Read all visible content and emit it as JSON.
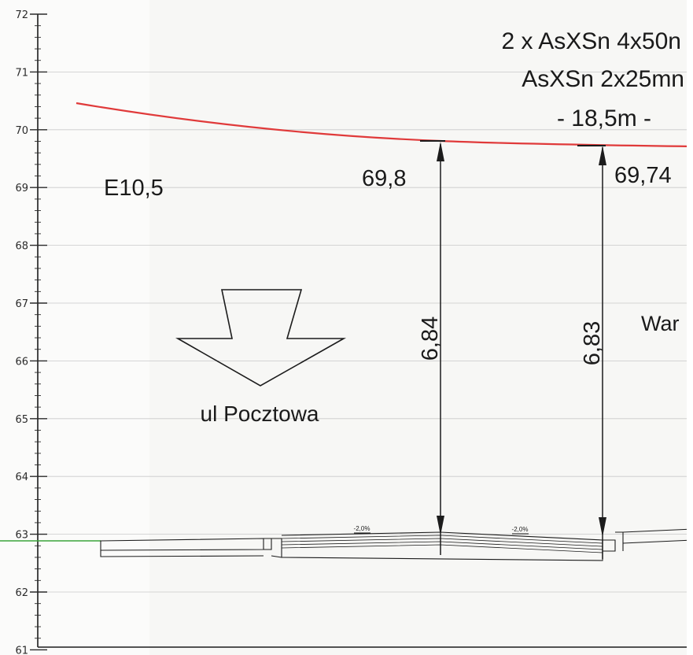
{
  "axis": {
    "ticks": [
      "72",
      "71",
      "70",
      "69",
      "68",
      "67",
      "66",
      "65",
      "64",
      "63",
      "62",
      "61"
    ],
    "range": [
      61,
      72
    ]
  },
  "labels": {
    "cable_line1": "2 x AsXSn 4x50n",
    "cable_line2": "AsXSn 2x25mn",
    "span": "- 18,5m -",
    "pole": "E10,5",
    "elev_left": "69,8",
    "elev_right": "69,74",
    "clear_left": "6,84",
    "clear_right": "6,83",
    "street": "ul Pocztowa",
    "red_text": "War",
    "slope_left": "-2,0%",
    "slope_right": "-2,0%"
  },
  "colors": {
    "conductor": "#e03a3a",
    "ground_green": "#3aa53a",
    "red_label": "#e24848",
    "ink": "#1c1c1c",
    "grid": "#c9c9c9"
  }
}
